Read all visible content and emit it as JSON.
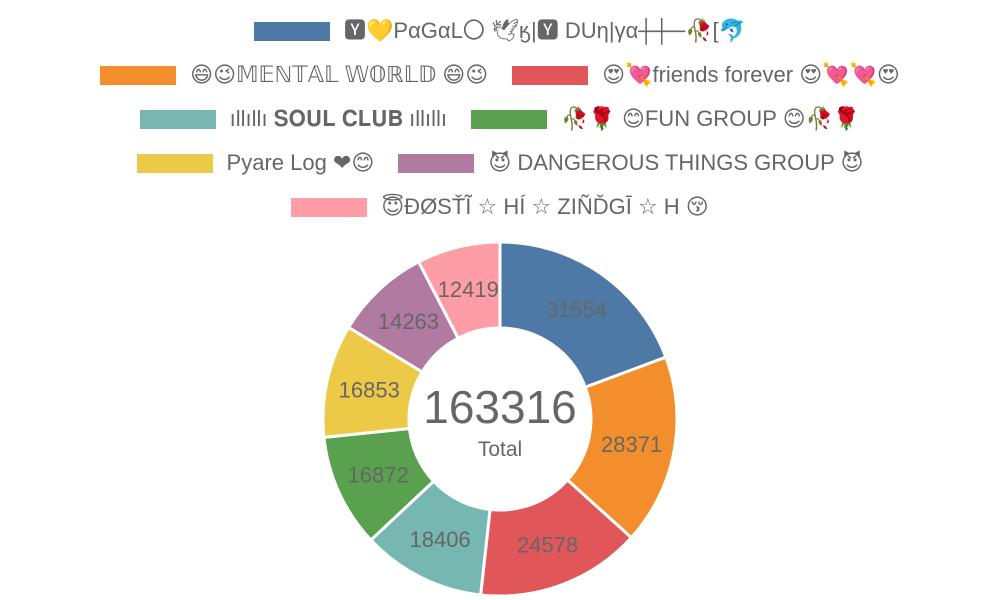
{
  "chart_data": {
    "type": "pie",
    "donut": true,
    "total": "163316",
    "total_caption": "Total",
    "legend_position": "top",
    "series": [
      {
        "name": "🆈💛PαGαL〇 🕊ӄ|🆈 DUη|γα┼┼─🥀[🐬",
        "value": 31554,
        "color": "#4e79a7"
      },
      {
        "name": "😄😉𝕄𝔼ℕ𝕋𝔸𝕃 𝕎𝕆ℝ𝕃𝔻 😄😉",
        "value": 28371,
        "color": "#f28e2b"
      },
      {
        "name": "😍💘friends forever 😍💘💘😍",
        "value": 24578,
        "color": "#e15759"
      },
      {
        "name": "ıllıllı 𝐒𝐎𝐔𝐋 𝐂𝐋𝐔𝐁 ıllıllı",
        "value": 18406,
        "color": "#76b7b2"
      },
      {
        "name": "🥀🌹 😊FUN GROUP 😊🥀🌹",
        "value": 16872,
        "color": "#59a14f"
      },
      {
        "name": "Pyare Log ❤😊",
        "value": 16853,
        "color": "#edc948"
      },
      {
        "name": "😈 DANGEROUS THINGS GROUP 😈",
        "value": 14263,
        "color": "#b07aa1"
      },
      {
        "name": "😇ĐØSŤĨ ☆ HÍ ☆ ZIÑĎGĪ ☆ H 😚",
        "value": 12419,
        "color": "#ff9da7"
      }
    ]
  }
}
